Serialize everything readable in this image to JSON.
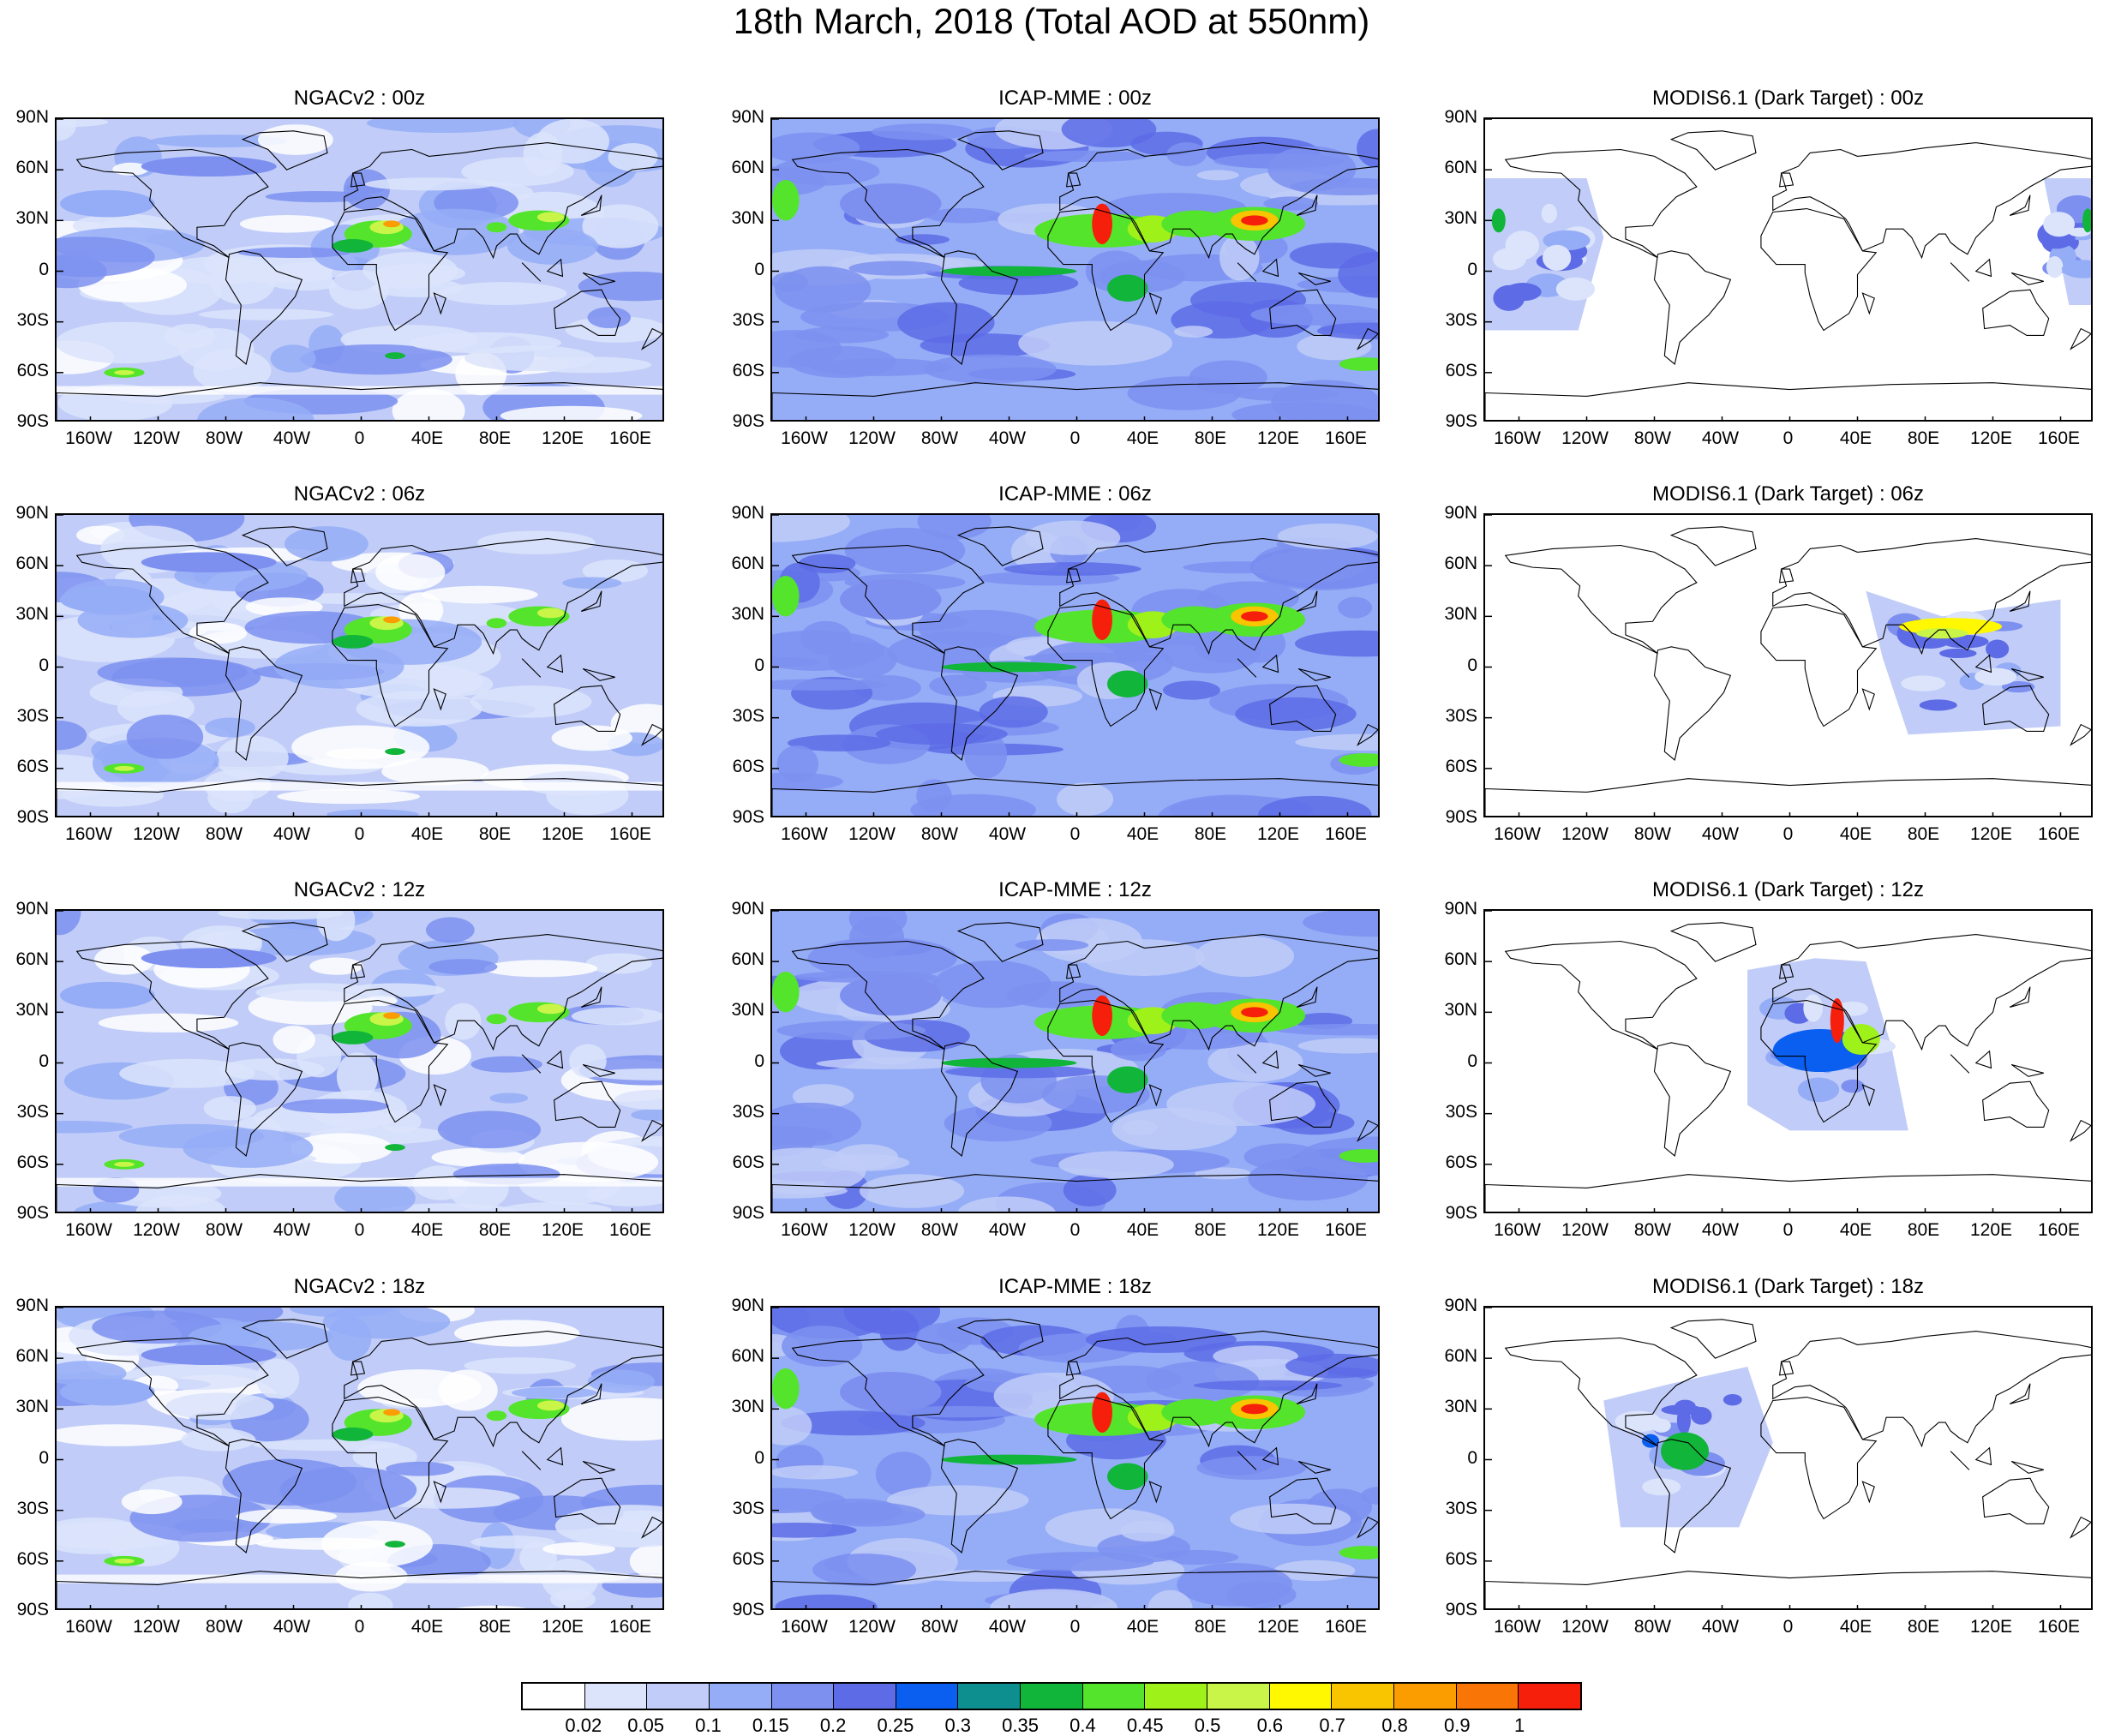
{
  "title": "18th March, 2018 (Total AOD at 550nm)",
  "lat_labels": [
    "90N",
    "60N",
    "30N",
    "0",
    "30S",
    "60S",
    "90S"
  ],
  "lon_labels": [
    "160W",
    "120W",
    "80W",
    "40W",
    "0",
    "40E",
    "80E",
    "120E",
    "160E"
  ],
  "lon_values": [
    -160,
    -120,
    -80,
    -40,
    0,
    40,
    80,
    120,
    160
  ],
  "lat_values": [
    90,
    60,
    30,
    0,
    -30,
    -60,
    -90
  ],
  "colorbar": {
    "colors": [
      "#ffffff",
      "#dce4fb",
      "#c1cdf8",
      "#95adf7",
      "#7d90f0",
      "#5d6ce6",
      "#0a5ef0",
      "#0d8f8f",
      "#11b53a",
      "#53e42b",
      "#9ef21a",
      "#c8f547",
      "#fff800",
      "#f9c400",
      "#fb9c00",
      "#f87506",
      "#f51f0b"
    ],
    "labels": [
      "0.02",
      "0.05",
      "0.1",
      "0.15",
      "0.2",
      "0.25",
      "0.3",
      "0.35",
      "0.4",
      "0.45",
      "0.5",
      "0.6",
      "0.7",
      "0.8",
      "0.9",
      "1"
    ]
  },
  "panels": [
    {
      "title": "NGACv2 : 00z",
      "type": "model",
      "style": "ngac"
    },
    {
      "title": "ICAP-MME : 00z",
      "type": "model",
      "style": "icap"
    },
    {
      "title": "MODIS6.1 (Dark Target) : 00z",
      "type": "satellite",
      "swath": [
        [
          -180,
          55
        ],
        [
          -120,
          55
        ],
        [
          -110,
          20
        ],
        [
          -125,
          -35
        ],
        [
          -180,
          -35
        ]
      ],
      "swath_b": [
        [
          150,
          55
        ],
        [
          180,
          55
        ],
        [
          180,
          -20
        ],
        [
          165,
          -20
        ]
      ]
    },
    {
      "title": "NGACv2 : 06z",
      "type": "model",
      "style": "ngac"
    },
    {
      "title": "ICAP-MME : 06z",
      "type": "model",
      "style": "icap"
    },
    {
      "title": "MODIS6.1 (Dark Target) : 06z",
      "type": "satellite",
      "swath": [
        [
          45,
          45
        ],
        [
          90,
          30
        ],
        [
          160,
          40
        ],
        [
          160,
          -35
        ],
        [
          70,
          -40
        ],
        [
          55,
          5
        ]
      ]
    },
    {
      "title": "NGACv2 : 12z",
      "type": "model",
      "style": "ngac"
    },
    {
      "title": "ICAP-MME : 12z",
      "type": "model",
      "style": "icap"
    },
    {
      "title": "MODIS6.1 (Dark Target) : 12z",
      "type": "satellite",
      "swath": [
        [
          -25,
          55
        ],
        [
          15,
          62
        ],
        [
          45,
          60
        ],
        [
          60,
          10
        ],
        [
          70,
          -40
        ],
        [
          0,
          -40
        ],
        [
          -25,
          -25
        ]
      ]
    },
    {
      "title": "NGACv2 : 18z",
      "type": "model",
      "style": "ngac"
    },
    {
      "title": "ICAP-MME : 18z",
      "type": "model",
      "style": "icap"
    },
    {
      "title": "MODIS6.1 (Dark Target) : 18z",
      "type": "satellite",
      "swath": [
        [
          -110,
          35
        ],
        [
          -70,
          45
        ],
        [
          -25,
          55
        ],
        [
          -10,
          10
        ],
        [
          -30,
          -40
        ],
        [
          -100,
          -40
        ],
        [
          -105,
          0
        ]
      ]
    }
  ]
}
